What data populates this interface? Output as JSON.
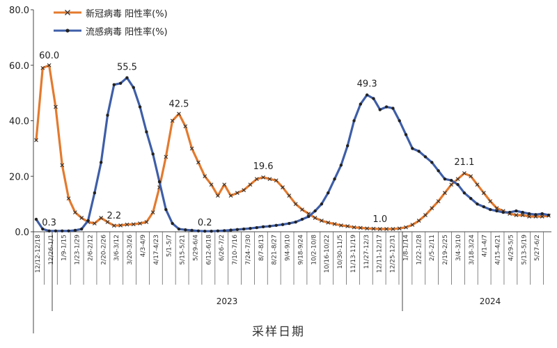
{
  "chart_data": {
    "type": "line",
    "xlabel": "采样日期",
    "ylabel": "",
    "ylim": [
      0,
      80
    ],
    "yticks": [
      "0.0",
      "20.0",
      "40.0",
      "60.0",
      "80.0"
    ],
    "legend_position": "top-left",
    "grid": false,
    "year_labels": [
      "2023",
      "2024"
    ],
    "x_tick_labels": [
      "12/12-12/18",
      "12/26-1/1",
      "1/9-1/15",
      "1/23-1/29",
      "2/6-2/12",
      "2/20-2/26",
      "3/6-3/12",
      "3/20-3/26",
      "4/3-4/9",
      "4/17-4/23",
      "5/1-5/7",
      "5/15-5/21",
      "5/29-6/4",
      "6/12-6/18",
      "6/26-7/2",
      "7/10-7/16",
      "7/24-7/30",
      "8/7-8/13",
      "8/21-8/27",
      "9/4-9/10",
      "9/18-9/24",
      "10/2-10/8",
      "10/16-10/22",
      "10/30-11/5",
      "11/13-11/19",
      "11/27-12/3",
      "12/11-12/17",
      "12/25-12/31",
      "1/8-1/14",
      "1/22-1/28",
      "2/5-2/11",
      "2/19-2/25",
      "3/4-3/10",
      "3/18-3/24",
      "4/1-4/7",
      "4/15-4/21",
      "4/29-5/5",
      "5/13-5/19",
      "5/27-6/2"
    ],
    "series": [
      {
        "name": "新冠病毒 阳性率(%)",
        "color": "#E37A2E",
        "marker": "x",
        "values": [
          33,
          59,
          60,
          45,
          24,
          12,
          7,
          5,
          3.5,
          3,
          5,
          3.5,
          2.2,
          2.3,
          2.6,
          2.7,
          3,
          3.5,
          7,
          16,
          27,
          40,
          42.5,
          38,
          30,
          25,
          20,
          17,
          13,
          17,
          13,
          14,
          15,
          17,
          19,
          19.6,
          19,
          18.5,
          16,
          13,
          10,
          8,
          6.5,
          5,
          4,
          3.3,
          2.8,
          2.3,
          2,
          1.6,
          1.4,
          1.2,
          1.1,
          1.0,
          1.0,
          1.0,
          1.2,
          1.6,
          2.5,
          4,
          6,
          8.5,
          11,
          14,
          17,
          19,
          21.1,
          20,
          17,
          14,
          11,
          8.5,
          7.5,
          6.5,
          6,
          6,
          5.5,
          5.5,
          5.5,
          5.8
        ]
      },
      {
        "name": "流感病毒 阳性率(%)",
        "color": "#3E5EA8",
        "marker": "dot",
        "values": [
          4.5,
          1,
          0.3,
          0.3,
          0.3,
          0.3,
          0.5,
          1,
          4,
          14,
          25,
          42,
          53,
          53.5,
          55.5,
          52,
          45,
          36,
          28,
          18,
          8,
          3,
          1,
          0.7,
          0.5,
          0.3,
          0.2,
          0.2,
          0.3,
          0.4,
          0.6,
          0.8,
          1,
          1.2,
          1.5,
          1.8,
          2,
          2.3,
          2.6,
          3,
          3.5,
          4.5,
          5.5,
          7.5,
          10,
          14,
          19,
          24,
          31,
          40,
          46,
          49.3,
          48,
          44,
          45,
          44.5,
          40,
          35,
          30,
          29,
          27,
          25,
          22,
          19,
          18.5,
          17,
          14,
          12,
          10,
          9,
          8,
          7.5,
          7,
          7,
          7.5,
          7,
          6.5,
          6.2,
          6.5,
          6
        ]
      }
    ]
  }
}
